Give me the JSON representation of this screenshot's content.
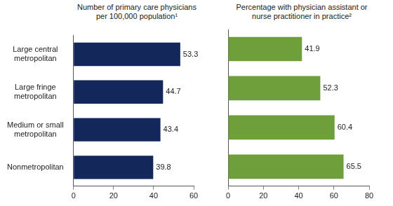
{
  "chart_data": [
    {
      "type": "bar",
      "orientation": "horizontal",
      "title": "Number of primary care physicians per 100,000 population¹",
      "categories": [
        "Large central metropolitan",
        "Large fringe metropolitan",
        "Medium or small metropolitan",
        "Nonmetropolitan"
      ],
      "values": [
        53.3,
        44.7,
        43.4,
        39.8
      ],
      "color": "#13275a",
      "xlim": [
        0,
        60
      ],
      "xticks": [
        0,
        20,
        40,
        60
      ],
      "grid": false,
      "data_labels": true
    },
    {
      "type": "bar",
      "orientation": "horizontal",
      "title": "Percentage with physician assistant or nurse practitioner in practice²",
      "categories": [
        "Large central metropolitan",
        "Large fringe metropolitan",
        "Medium or small metropolitan",
        "Nonmetropolitan"
      ],
      "values": [
        41.9,
        52.3,
        60.4,
        65.5
      ],
      "color": "#6f9f3a",
      "xlim": [
        0,
        80
      ],
      "xticks": [
        0,
        20,
        40,
        60,
        80
      ],
      "grid": false,
      "data_labels": true,
      "tick_labels": "x"
    }
  ]
}
